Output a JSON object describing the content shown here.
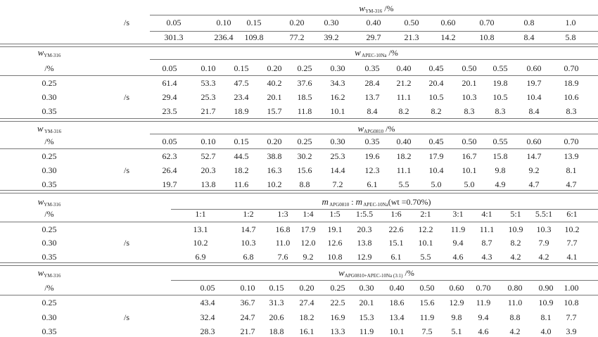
{
  "unit_s": "/s",
  "unit_pct": "/%",
  "sections": [
    {
      "header": {
        "var": "w",
        "sub": "YM-316",
        "suffix": " /%"
      },
      "columns": [
        "0.05",
        "0.10",
        "0.15",
        "0.20",
        "0.30",
        "0.40",
        "0.50",
        "0.60",
        "0.70",
        "0.8",
        "1.0"
      ],
      "rows": [
        {
          "label": "",
          "values": [
            "301.3",
            "236.4",
            "109.8",
            "77.2",
            "39.2",
            "29.7",
            "21.3",
            "14.2",
            "10.8",
            "8.4",
            "5.8"
          ]
        }
      ]
    },
    {
      "row_header": {
        "var": "w",
        "sub": "YM-316",
        "unit": "/%"
      },
      "header": {
        "var": "w",
        "sub": " APEC-10Na",
        "suffix": " /%"
      },
      "columns": [
        "0.05",
        "0.10",
        "0.15",
        "0.20",
        "0.25",
        "0.30",
        "0.35",
        "0.40",
        "0.45",
        "0.50",
        "0.55",
        "0.60",
        "0.70"
      ],
      "rows": [
        {
          "label": "0.25",
          "values": [
            "61.4",
            "53.3",
            "47.5",
            "40.2",
            "37.6",
            "34.3",
            "28.4",
            "21.2",
            "20.4",
            "20.1",
            "19.8",
            "19.7",
            "18.9"
          ]
        },
        {
          "label": "0.30",
          "values": [
            "29.4",
            "25.3",
            "23.4",
            "20.1",
            "18.5",
            "16.2",
            "13.7",
            "11.1",
            "10.5",
            "10.3",
            "10.5",
            "10.4",
            "10.6"
          ]
        },
        {
          "label": "0.35",
          "values": [
            "23.5",
            "21.7",
            "18.9",
            "15.7",
            "11.8",
            "10.1",
            "8.4",
            "8.2",
            "8.2",
            "8.3",
            "8.3",
            "8.4",
            "8.3"
          ]
        }
      ]
    },
    {
      "row_header": {
        "var": "w",
        "sub": " YM-316",
        "unit": "/%"
      },
      "header": {
        "var": "w",
        "sub": "APG0810",
        "suffix": " /%"
      },
      "columns": [
        "0.05",
        "0.10",
        "0.15",
        "0.20",
        "0.25",
        "0.30",
        "0.35",
        "0.40",
        "0.45",
        "0.50",
        "0.55",
        "0.60",
        "0.70"
      ],
      "rows": [
        {
          "label": "0.25",
          "values": [
            "62.3",
            "52.7",
            "44.5",
            "38.8",
            "30.2",
            "25.3",
            "19.6",
            "18.2",
            "17.9",
            "16.7",
            "15.8",
            "14.7",
            "13.9"
          ]
        },
        {
          "label": "0.30",
          "values": [
            "26.4",
            "20.3",
            "18.2",
            "16.3",
            "15.6",
            "14.4",
            "12.3",
            "11.1",
            "10.4",
            "10.1",
            "9.8",
            "9.2",
            "8.1"
          ]
        },
        {
          "label": "0.35",
          "values": [
            "19.7",
            "13.8",
            "11.6",
            "10.2",
            "8.8",
            "7.2",
            "6.1",
            "5.5",
            "5.0",
            "5.0",
            "4.9",
            "4.7",
            "4.7"
          ]
        }
      ]
    },
    {
      "row_header": {
        "var": "w",
        "sub": "YM-316",
        "unit": "/%"
      },
      "header": {
        "var": "m",
        "sub": " APG0810",
        "suffix": " : ",
        "var2": "m",
        "sub2": " APEC-10Na",
        "suffix2": "(wt  =0.70%)"
      },
      "columns": [
        "1:1",
        "1:2",
        "1:3",
        "1:4",
        "1:5",
        "1:5.5",
        "1:6",
        "2:1",
        "3:1",
        "4:1",
        "5:1",
        "5.5:1",
        "6:1"
      ],
      "rows": [
        {
          "label": "0.25",
          "values": [
            "13.1",
            "14.7",
            "16.8",
            "17.9",
            "19.1",
            "20.3",
            "22.6",
            "12.2",
            "11.9",
            "11.1",
            "10.9",
            "10.3",
            "10.2"
          ]
        },
        {
          "label": "0.30",
          "values": [
            "10.2",
            "10.3",
            "11.0",
            "12.0",
            "12.6",
            "13.8",
            "15.1",
            "10.1",
            "9.4",
            "8.7",
            "8.2",
            "7.9",
            "7.7"
          ]
        },
        {
          "label": "0.35",
          "values": [
            "6.9",
            "6.8",
            "7.6",
            "9.2",
            "10.8",
            "12.9",
            "6.1",
            "5.5",
            "4.6",
            "4.3",
            "4.2",
            "4.2",
            "4.1"
          ]
        }
      ]
    },
    {
      "row_header": {
        "var": "w",
        "sub": "YM-316",
        "unit": "/%"
      },
      "header": {
        "var": "w",
        "sub": "APG0810+APEC-10Na (3:1)",
        "suffix": " /%"
      },
      "columns": [
        "0.05",
        "0.10",
        "0.15",
        "0.20",
        "0.25",
        "0.30",
        "0.40",
        "0.50",
        "0.60",
        "0.70",
        "0.80",
        "0.90",
        "1.00"
      ],
      "rows": [
        {
          "label": "0.25",
          "values": [
            "43.4",
            "36.7",
            "31.3",
            "27.4",
            "22.5",
            "20.1",
            "18.6",
            "15.6",
            "12.9",
            "11.9",
            "11.0",
            "10.9",
            "10.8"
          ]
        },
        {
          "label": "0.30",
          "values": [
            "32.4",
            "24.7",
            "20.6",
            "18.2",
            "16.9",
            "15.3",
            "13.4",
            "11.9",
            "9.8",
            "9.4",
            "8.8",
            "8.1",
            "7.7"
          ]
        },
        {
          "label": "0.35",
          "values": [
            "28.3",
            "21.7",
            "18.8",
            "16.1",
            "13.3",
            "11.9",
            "10.1",
            "7.5",
            "5.1",
            "4.6",
            "4.2",
            "4.0",
            "3.9"
          ]
        }
      ]
    }
  ]
}
